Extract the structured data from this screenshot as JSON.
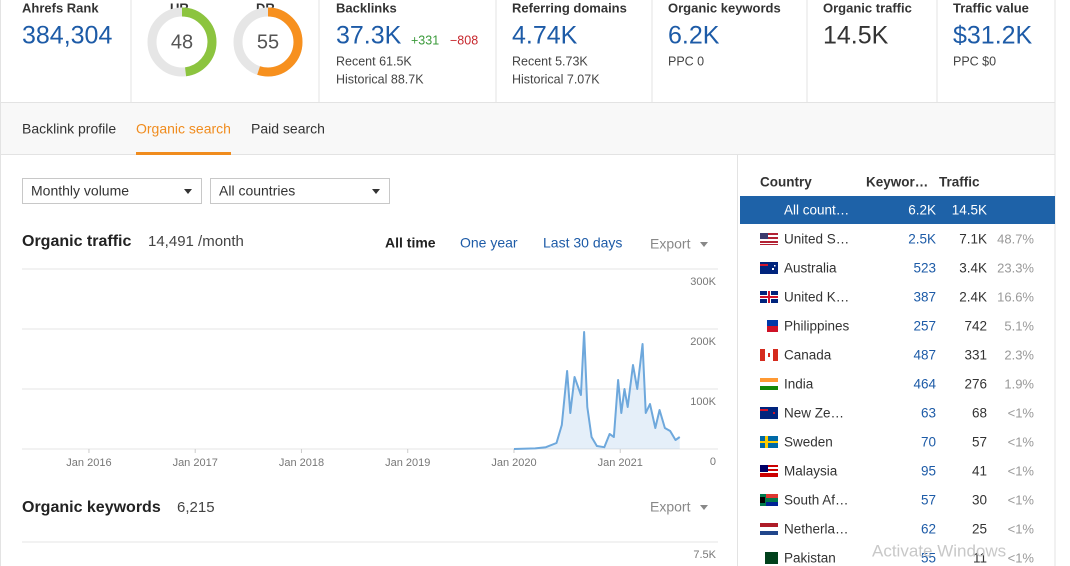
{
  "metrics": {
    "ahrefs_rank": {
      "label": "Ahrefs Rank",
      "value": "384,304"
    },
    "ur": {
      "label": "UR",
      "value": 48
    },
    "dr": {
      "label": "DR",
      "value": 55
    },
    "backlinks": {
      "label": "Backlinks",
      "value": "37.3K",
      "new": "+331",
      "lost": "−808",
      "recent": "Recent 61.5K",
      "historical": "Historical 88.7K"
    },
    "referring_domains": {
      "label": "Referring domains",
      "value": "4.74K",
      "recent": "Recent 5.73K",
      "historical": "Historical 7.07K"
    },
    "organic_keywords": {
      "label": "Organic keywords",
      "value": "6.2K",
      "ppc": "PPC 0"
    },
    "organic_traffic": {
      "label": "Organic traffic",
      "value": "14.5K"
    },
    "traffic_value": {
      "label": "Traffic value",
      "value": "$31.2K",
      "ppc": "PPC $0"
    }
  },
  "tabs": [
    "Backlink profile",
    "Organic search",
    "Paid search"
  ],
  "filters": [
    "Monthly volume",
    "All countries"
  ],
  "traffic_section": {
    "title": "Organic traffic",
    "value": "14,491 /month",
    "ranges": [
      "All time",
      "One year",
      "Last 30 days"
    ],
    "export": "Export"
  },
  "chart_data": {
    "type": "area",
    "color": "#6ea8dc",
    "x": [
      2020.0,
      2020.2,
      2020.3,
      2020.4,
      2020.45,
      2020.5,
      2020.53,
      2020.57,
      2020.63,
      2020.66,
      2020.69,
      2020.73,
      2020.78,
      2020.85,
      2020.9,
      2020.94,
      2020.98,
      2021.01,
      2021.04,
      2021.07,
      2021.12,
      2021.16,
      2021.21,
      2021.24,
      2021.28,
      2021.33,
      2021.37,
      2021.42,
      2021.47,
      2021.52,
      2021.56
    ],
    "series": [
      {
        "name": "Organic traffic",
        "values": [
          0,
          1000,
          3000,
          10000,
          40000,
          130000,
          60000,
          120000,
          90000,
          195000,
          70000,
          20000,
          5000,
          3000,
          25000,
          20000,
          115000,
          60000,
          100000,
          70000,
          140000,
          100000,
          175000,
          60000,
          75000,
          35000,
          65000,
          35000,
          30000,
          15000,
          20000
        ]
      }
    ],
    "xlim": [
      2015.37,
      2021.92
    ],
    "xticks": [
      {
        "value": 2016,
        "label": "Jan 2016"
      },
      {
        "value": 2017,
        "label": "Jan 2017"
      },
      {
        "value": 2018,
        "label": "Jan 2018"
      },
      {
        "value": 2019,
        "label": "Jan 2019"
      },
      {
        "value": 2020,
        "label": "Jan 2020"
      },
      {
        "value": 2021,
        "label": "Jan 2021"
      }
    ],
    "ylim": [
      0,
      300000
    ],
    "yticks": [
      {
        "value": 0,
        "label": "0"
      },
      {
        "value": 100000,
        "label": "100K"
      },
      {
        "value": 200000,
        "label": "200K"
      },
      {
        "value": 300000,
        "label": "300K"
      }
    ],
    "grid": true
  },
  "keywords_section": {
    "title": "Organic keywords",
    "value": "6,215",
    "export": "Export",
    "yticks": [
      {
        "value": 7500,
        "label": "7.5K"
      }
    ]
  },
  "countries": {
    "headers": [
      "Country",
      "Keywor…",
      "Traffic"
    ],
    "selected": {
      "country": "All count…",
      "keywords": "6.2K",
      "traffic": "14.5K"
    },
    "rows": [
      {
        "country": "United S…",
        "keywords": "2.5K",
        "traffic": "7.1K",
        "share": "48.7%"
      },
      {
        "country": "Australia",
        "keywords": "523",
        "traffic": "3.4K",
        "share": "23.3%"
      },
      {
        "country": "United K…",
        "keywords": "387",
        "traffic": "2.4K",
        "share": "16.6%"
      },
      {
        "country": "Philippines",
        "keywords": "257",
        "traffic": "742",
        "share": "5.1%"
      },
      {
        "country": "Canada",
        "keywords": "487",
        "traffic": "331",
        "share": "2.3%"
      },
      {
        "country": "India",
        "keywords": "464",
        "traffic": "276",
        "share": "1.9%"
      },
      {
        "country": "New Ze…",
        "keywords": "63",
        "traffic": "68",
        "share": "<1%"
      },
      {
        "country": "Sweden",
        "keywords": "70",
        "traffic": "57",
        "share": "<1%"
      },
      {
        "country": "Malaysia",
        "keywords": "95",
        "traffic": "41",
        "share": "<1%"
      },
      {
        "country": "South Af…",
        "keywords": "57",
        "traffic": "30",
        "share": "<1%"
      },
      {
        "country": "Netherla…",
        "keywords": "62",
        "traffic": "25",
        "share": "<1%"
      },
      {
        "country": "Pakistan",
        "keywords": "55",
        "traffic": "11",
        "share": "<1%"
      }
    ]
  },
  "watermark": "Activate Windows"
}
